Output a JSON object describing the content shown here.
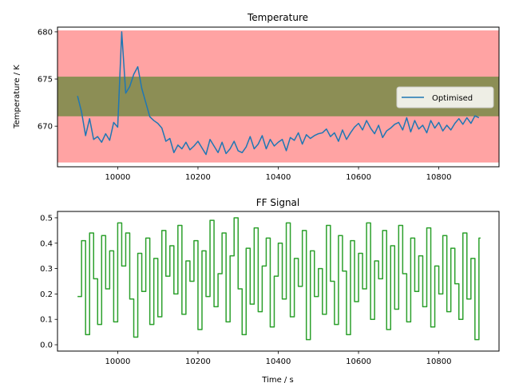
{
  "chart_data": [
    {
      "type": "line",
      "title": "Temperature",
      "xlabel": "",
      "ylabel": "Temperature / K",
      "xlim": [
        9850,
        10950
      ],
      "ylim": [
        665.7,
        680.5
      ],
      "xticks": [
        10000,
        10200,
        10400,
        10600,
        10800
      ],
      "yticks": [
        670,
        675,
        680
      ],
      "xtick_labels": [
        "10000",
        "10200",
        "10400",
        "10600",
        "10800"
      ],
      "ytick_labels": [
        "670",
        "675",
        "680"
      ],
      "grid": false,
      "legend_position": "right",
      "bands": [
        {
          "y0": 666.2,
          "y1": 680.1,
          "color": "#ff9999"
        },
        {
          "y0": 671.1,
          "y1": 675.2,
          "color": "#7f8c4c"
        }
      ],
      "series": [
        {
          "name": "Optimised",
          "color": "#1f77b4",
          "x": [
            9900,
            9910,
            9920,
            9930,
            9940,
            9950,
            9960,
            9970,
            9980,
            9990,
            10000,
            10010,
            10020,
            10030,
            10040,
            10050,
            10060,
            10070,
            10080,
            10090,
            10100,
            10110,
            10120,
            10130,
            10140,
            10150,
            10160,
            10170,
            10180,
            10190,
            10200,
            10210,
            10220,
            10230,
            10240,
            10250,
            10260,
            10270,
            10280,
            10290,
            10300,
            10310,
            10320,
            10330,
            10340,
            10350,
            10360,
            10370,
            10380,
            10390,
            10400,
            10410,
            10420,
            10430,
            10440,
            10450,
            10460,
            10470,
            10480,
            10490,
            10500,
            10510,
            10520,
            10530,
            10540,
            10550,
            10560,
            10570,
            10580,
            10590,
            10600,
            10610,
            10620,
            10630,
            10640,
            10650,
            10660,
            10670,
            10680,
            10690,
            10700,
            10710,
            10720,
            10730,
            10740,
            10750,
            10760,
            10770,
            10780,
            10790,
            10800,
            10810,
            10820,
            10830,
            10840,
            10850,
            10860,
            10870,
            10880,
            10890,
            10900
          ],
          "values": [
            673.2,
            671.5,
            669.0,
            670.8,
            668.6,
            668.9,
            668.3,
            669.2,
            668.5,
            670.4,
            669.9,
            680.0,
            673.5,
            674.2,
            675.5,
            676.3,
            674.0,
            672.5,
            671.0,
            670.6,
            670.3,
            669.8,
            668.4,
            668.7,
            667.2,
            668.0,
            667.6,
            668.3,
            667.5,
            667.9,
            668.4,
            667.7,
            667.0,
            668.6,
            667.9,
            667.2,
            668.3,
            667.1,
            667.6,
            668.4,
            667.4,
            667.2,
            667.8,
            668.9,
            667.6,
            668.1,
            669.0,
            667.6,
            668.6,
            667.9,
            668.3,
            668.6,
            667.4,
            668.8,
            668.5,
            669.3,
            668.1,
            669.1,
            668.7,
            669.0,
            669.2,
            669.3,
            669.7,
            668.9,
            669.3,
            668.4,
            669.6,
            668.6,
            669.3,
            669.9,
            670.3,
            669.6,
            670.6,
            669.8,
            669.2,
            670.1,
            668.8,
            669.5,
            669.8,
            670.2,
            670.4,
            669.6,
            670.9,
            669.4,
            670.6,
            669.7,
            670.1,
            669.3,
            670.6,
            669.8,
            670.4,
            669.5,
            670.1,
            669.6,
            670.3,
            670.8,
            670.2,
            670.9,
            670.3,
            671.1,
            670.9
          ]
        }
      ]
    },
    {
      "type": "line",
      "step": true,
      "title": "FF Signal",
      "xlabel": "Time / s",
      "ylabel": "",
      "xlim": [
        9850,
        10950
      ],
      "ylim": [
        -0.025,
        0.525
      ],
      "xticks": [
        10000,
        10200,
        10400,
        10600,
        10800
      ],
      "yticks": [
        0.0,
        0.1,
        0.2,
        0.3,
        0.4,
        0.5
      ],
      "xtick_labels": [
        "10000",
        "10200",
        "10400",
        "10600",
        "10800"
      ],
      "ytick_labels": [
        "0.0",
        "0.1",
        "0.2",
        "0.3",
        "0.4",
        "0.5"
      ],
      "grid": false,
      "series": [
        {
          "color": "#2ca02c",
          "x": [
            9900,
            9910,
            9920,
            9930,
            9940,
            9950,
            9960,
            9970,
            9980,
            9990,
            10000,
            10010,
            10020,
            10030,
            10040,
            10050,
            10060,
            10070,
            10080,
            10090,
            10100,
            10110,
            10120,
            10130,
            10140,
            10150,
            10160,
            10170,
            10180,
            10190,
            10200,
            10210,
            10220,
            10230,
            10240,
            10250,
            10260,
            10270,
            10280,
            10290,
            10300,
            10310,
            10320,
            10330,
            10340,
            10350,
            10360,
            10370,
            10380,
            10390,
            10400,
            10410,
            10420,
            10430,
            10440,
            10450,
            10460,
            10470,
            10480,
            10490,
            10500,
            10510,
            10520,
            10530,
            10540,
            10550,
            10560,
            10570,
            10580,
            10590,
            10600,
            10610,
            10620,
            10630,
            10640,
            10650,
            10660,
            10670,
            10680,
            10690,
            10700,
            10710,
            10720,
            10730,
            10740,
            10750,
            10760,
            10770,
            10780,
            10790,
            10800,
            10810,
            10820,
            10830,
            10840,
            10850,
            10860,
            10870,
            10880,
            10890,
            10900
          ],
          "values": [
            0.19,
            0.41,
            0.04,
            0.44,
            0.26,
            0.08,
            0.43,
            0.22,
            0.37,
            0.09,
            0.48,
            0.31,
            0.44,
            0.18,
            0.03,
            0.36,
            0.21,
            0.42,
            0.08,
            0.34,
            0.11,
            0.45,
            0.27,
            0.39,
            0.2,
            0.47,
            0.12,
            0.33,
            0.25,
            0.41,
            0.06,
            0.37,
            0.19,
            0.49,
            0.15,
            0.28,
            0.44,
            0.09,
            0.35,
            0.5,
            0.22,
            0.04,
            0.38,
            0.16,
            0.46,
            0.13,
            0.31,
            0.42,
            0.07,
            0.27,
            0.4,
            0.18,
            0.48,
            0.11,
            0.34,
            0.23,
            0.45,
            0.02,
            0.37,
            0.19,
            0.3,
            0.12,
            0.47,
            0.25,
            0.08,
            0.43,
            0.29,
            0.04,
            0.41,
            0.17,
            0.36,
            0.22,
            0.48,
            0.1,
            0.33,
            0.26,
            0.45,
            0.06,
            0.39,
            0.14,
            0.47,
            0.28,
            0.09,
            0.42,
            0.21,
            0.35,
            0.15,
            0.46,
            0.07,
            0.31,
            0.2,
            0.43,
            0.13,
            0.38,
            0.24,
            0.1,
            0.44,
            0.18,
            0.34,
            0.02,
            0.42
          ]
        }
      ]
    }
  ]
}
